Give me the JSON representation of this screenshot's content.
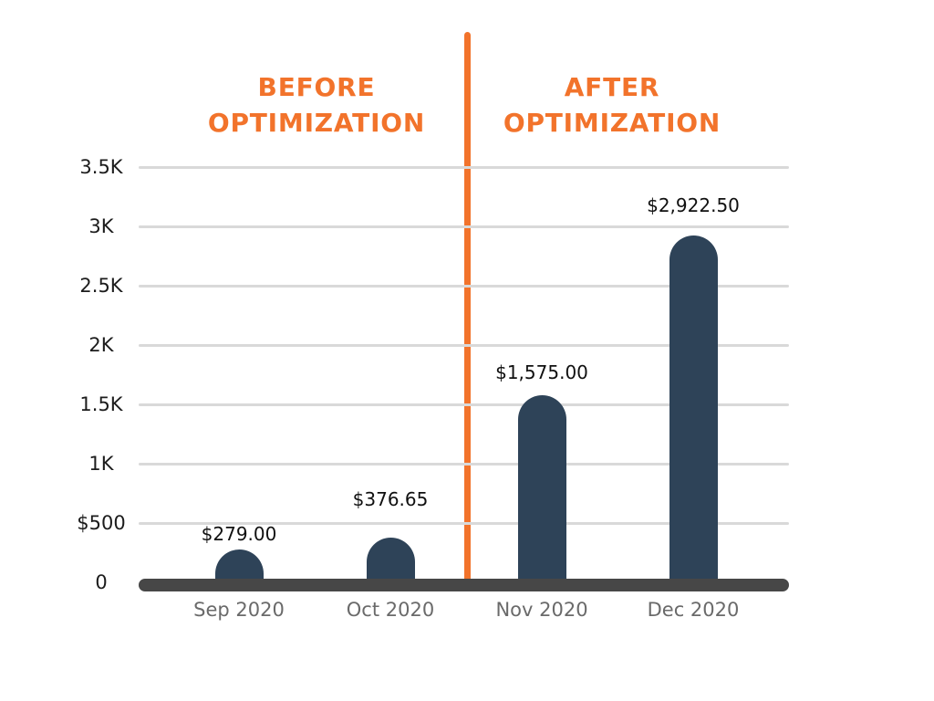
{
  "titles": {
    "before": "BEFORE OPTIMIZATION",
    "after": "AFTER OPTIMIZATION"
  },
  "chart_data": {
    "type": "bar",
    "categories": [
      "Sep 2020",
      "Oct 2020",
      "Nov 2020",
      "Dec 2020"
    ],
    "values": [
      279.0,
      376.65,
      1575.0,
      2922.5
    ],
    "value_labels": [
      "$279.00",
      "$376.65",
      "$1,575.00",
      "$2,922.50"
    ],
    "sections": [
      {
        "label": "BEFORE OPTIMIZATION",
        "categories": [
          "Sep 2020",
          "Oct 2020"
        ]
      },
      {
        "label": "AFTER OPTIMIZATION",
        "categories": [
          "Nov 2020",
          "Dec 2020"
        ]
      }
    ],
    "y_ticks": [
      {
        "label": "3.5K",
        "value": 3500
      },
      {
        "label": "3K",
        "value": 3000
      },
      {
        "label": "2.5K",
        "value": 2500
      },
      {
        "label": "2K",
        "value": 2000
      },
      {
        "label": "1.5K",
        "value": 1500
      },
      {
        "label": "1K",
        "value": 1000
      },
      {
        "label": "$500",
        "value": 500
      },
      {
        "label": "0",
        "value": 0
      }
    ],
    "ylim": [
      0,
      3500
    ],
    "grid": true,
    "legend": false,
    "divider_between": [
      "Oct 2020",
      "Nov 2020"
    ],
    "colors": {
      "bar": "#2E4358",
      "accent_orange": "#F2732B",
      "baseline": "#474747",
      "gridline": "#D9D9D9",
      "y_tick_label": "#1C1C1C",
      "x_tick_label": "#6A6A6A",
      "value_label": "#101010",
      "background": "#FFFFFF"
    }
  }
}
